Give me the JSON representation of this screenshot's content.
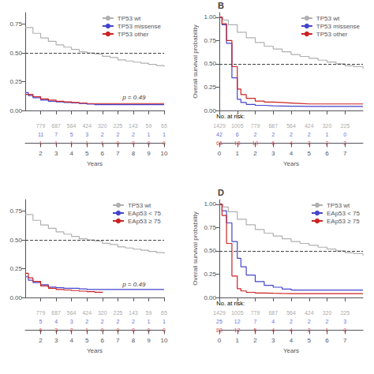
{
  "chart_data": [
    {
      "type": "step",
      "xlabel": "Years",
      "annotation": "p = 0.49",
      "legend": "upper right",
      "grid": false,
      "xlim": [
        1,
        10
      ],
      "xticks": [
        2,
        3,
        4,
        5,
        6,
        7,
        8,
        9,
        10
      ],
      "ylim": [
        0,
        0.85
      ],
      "yticks": [
        {
          "value": 0,
          "label": "0.00"
        },
        0.25,
        {
          "value": 0.5,
          "label": "0.50"
        },
        0.75
      ],
      "hline": {
        "value": 0.5,
        "color": "#444444",
        "line_style": "dashed"
      },
      "series": [
        {
          "name": "TP53 wt",
          "color": "#b0b0b0",
          "x": [
            1,
            1.5,
            2,
            2.5,
            3,
            3.5,
            4,
            4.5,
            5,
            5.5,
            6,
            6.5,
            7,
            7.5,
            8,
            8.5,
            9,
            9.5,
            10
          ],
          "values": [
            0.72,
            0.67,
            0.63,
            0.6,
            0.57,
            0.55,
            0.53,
            0.51,
            0.5,
            0.49,
            0.47,
            0.46,
            0.44,
            0.43,
            0.42,
            0.41,
            0.4,
            0.39,
            0.38
          ]
        },
        {
          "name": "TP53 missense",
          "color": "#4444cc",
          "x": [
            1,
            1.2,
            1.5,
            2,
            2.5,
            3,
            3.5,
            4,
            4.5,
            5,
            5.5,
            6,
            6.5,
            7,
            7.5,
            8,
            8.5,
            9,
            9.5,
            10
          ],
          "values": [
            0.155,
            0.13,
            0.11,
            0.09,
            0.08,
            0.075,
            0.07,
            0.065,
            0.06,
            0.055,
            0.05,
            0.05,
            0.05,
            0.05,
            0.05,
            0.05,
            0.05,
            0.05,
            0.05,
            0.05
          ]
        },
        {
          "name": "TP53 other",
          "color": "#cc2222",
          "x": [
            1,
            1.5,
            2,
            2.5,
            3,
            3.5,
            4,
            4.5,
            5,
            5.5,
            6,
            6.5,
            7,
            7.5,
            8,
            8.5,
            9,
            9.5,
            10
          ],
          "values": [
            0.14,
            0.12,
            0.1,
            0.09,
            0.08,
            0.075,
            0.07,
            0.065,
            0.06,
            0.06,
            0.06,
            0.06,
            0.06,
            0.06,
            0.06,
            0.06,
            0.06,
            0.06,
            0.06
          ]
        }
      ],
      "risk_table": {
        "x": [
          2,
          3,
          4,
          5,
          6,
          7,
          8,
          9,
          10
        ],
        "rows": [
          {
            "color": "#909090",
            "values": [
              779,
              687,
              564,
              424,
              320,
              225,
              143,
              59,
              65
            ]
          },
          {
            "color": "#4444cc",
            "values": [
              11,
              7,
              5,
              3,
              2,
              2,
              2,
              1,
              1
            ]
          },
          {
            "color": "#cc2222",
            "values": [
              1,
              1,
              1,
              1,
              1,
              0,
              0,
              0,
              0
            ]
          }
        ]
      }
    },
    {
      "type": "step",
      "label": "B",
      "xlabel": "Years",
      "ylabel": "Overall survival probability",
      "legend": "upper right",
      "grid": false,
      "xlim": [
        0,
        8
      ],
      "xticks": [
        0,
        1,
        2,
        3,
        4,
        5,
        6,
        7
      ],
      "ylim": [
        0,
        1.05
      ],
      "yticks": [
        {
          "value": 0,
          "label": "0.00"
        },
        0.25,
        {
          "value": 0.5,
          "label": "0.50"
        },
        0.75,
        {
          "value": 1,
          "label": "1.00"
        }
      ],
      "hline": {
        "value": 0.5,
        "color": "#444444",
        "line_style": "dashed"
      },
      "series": [
        {
          "name": "TP53 wt",
          "color": "#b0b0b0",
          "x": [
            0,
            0.2,
            0.5,
            1,
            1.5,
            2,
            2.5,
            3,
            3.5,
            4,
            4.5,
            5,
            5.5,
            6,
            6.5,
            7,
            7.5,
            8
          ],
          "values": [
            1.0,
            0.97,
            0.92,
            0.84,
            0.78,
            0.73,
            0.69,
            0.66,
            0.63,
            0.6,
            0.58,
            0.56,
            0.54,
            0.52,
            0.5,
            0.48,
            0.47,
            0.45
          ]
        },
        {
          "name": "TP53 missense",
          "color": "#4444cc",
          "x": [
            0,
            0.15,
            0.4,
            0.7,
            1.0,
            1.2,
            1.5,
            2,
            2.5,
            3,
            3.5,
            4,
            4.5,
            5,
            5.5,
            6,
            6.5,
            7,
            7.5,
            8
          ],
          "values": [
            1.0,
            0.92,
            0.72,
            0.35,
            0.12,
            0.085,
            0.065,
            0.055,
            0.05,
            0.048,
            0.046,
            0.045,
            0.044,
            0.043,
            0.043,
            0.043,
            0.043,
            0.043,
            0.043,
            0.043
          ]
        },
        {
          "name": "TP53 other",
          "color": "#cc2222",
          "x": [
            0,
            0.15,
            0.4,
            0.7,
            1.0,
            1.2,
            1.5,
            2,
            2.5,
            3,
            3.5,
            4,
            4.5,
            5,
            5.5,
            6,
            6.5,
            7,
            7.5,
            8
          ],
          "values": [
            1.0,
            0.93,
            0.75,
            0.47,
            0.23,
            0.17,
            0.13,
            0.1,
            0.09,
            0.085,
            0.08,
            0.075,
            0.07,
            0.07,
            0.07,
            0.07,
            0.07,
            0.07,
            0.07,
            0.07
          ]
        }
      ],
      "risk_table": {
        "title": "No. at risk:",
        "x": [
          0,
          1,
          2,
          3,
          4,
          5,
          6,
          7
        ],
        "rows": [
          {
            "color": "#909090",
            "values": [
              1429,
              1005,
              779,
              687,
              564,
              424,
              320,
              225
            ]
          },
          {
            "color": "#4444cc",
            "values": [
              42,
              6,
              2,
              2,
              2,
              2,
              1,
              0
            ]
          },
          {
            "color": "#cc2222",
            "values": [
              66,
              18,
              10,
              6,
              4,
              2,
              2,
              2
            ]
          }
        ]
      }
    },
    {
      "type": "step",
      "xlabel": "Years",
      "annotation": "p = 0.49",
      "legend": "upper right",
      "grid": false,
      "xlim": [
        1,
        10
      ],
      "xticks": [
        2,
        3,
        4,
        5,
        6,
        7,
        8,
        9,
        10
      ],
      "ylim": [
        0,
        0.85
      ],
      "yticks": [
        {
          "value": 0,
          "label": "0.00"
        },
        0.25,
        {
          "value": 0.5,
          "label": "0.50"
        },
        0.75
      ],
      "hline": {
        "value": 0.5,
        "color": "#444444",
        "line_style": "dashed"
      },
      "series": [
        {
          "name": "TP53 wt",
          "color": "#b0b0b0",
          "x": [
            1,
            1.5,
            2,
            2.5,
            3,
            3.5,
            4,
            4.5,
            5,
            5.5,
            6,
            6.5,
            7,
            7.5,
            8,
            8.5,
            9,
            9.5,
            10
          ],
          "values": [
            0.72,
            0.67,
            0.63,
            0.6,
            0.57,
            0.55,
            0.53,
            0.51,
            0.5,
            0.49,
            0.47,
            0.46,
            0.44,
            0.43,
            0.42,
            0.41,
            0.4,
            0.39,
            0.38
          ]
        },
        {
          "name": "EAp53 < 75",
          "color": "#4444cc",
          "x": [
            1,
            1.2,
            1.5,
            2,
            2.5,
            3,
            3.5,
            4,
            4.5,
            5,
            5.5,
            6,
            6.5,
            7,
            7.5,
            8,
            8.5,
            9,
            9.5,
            10
          ],
          "values": [
            0.18,
            0.15,
            0.13,
            0.11,
            0.09,
            0.085,
            0.08,
            0.08,
            0.075,
            0.07,
            0.07,
            0.07,
            0.07,
            0.07,
            0.07,
            0.07,
            0.07,
            0.07,
            0.07,
            0.07
          ]
        },
        {
          "name": "EAp53 ≥ 75",
          "color": "#cc2222",
          "x": [
            1,
            1.2,
            1.5,
            2,
            2.5,
            3,
            3.5,
            4,
            4.5,
            5,
            5.5,
            6
          ],
          "values": [
            0.21,
            0.17,
            0.14,
            0.1,
            0.08,
            0.07,
            0.065,
            0.06,
            0.055,
            0.05,
            0.045,
            0.04
          ]
        }
      ],
      "risk_table": {
        "x": [
          2,
          3,
          4,
          5,
          6,
          7,
          8,
          9,
          10
        ],
        "rows": [
          {
            "color": "#909090",
            "values": [
              779,
              687,
              564,
              424,
              320,
              225,
              143,
              59,
              65
            ]
          },
          {
            "color": "#4444cc",
            "values": [
              5,
              4,
              3,
              2,
              2,
              2,
              2,
              1,
              1
            ]
          },
          {
            "color": "#cc2222",
            "values": [
              6,
              3,
              2,
              1,
              0,
              0,
              0,
              0,
              0
            ]
          }
        ]
      }
    },
    {
      "type": "step",
      "label": "D",
      "xlabel": "Years",
      "ylabel": "Overall survival probability",
      "legend": "upper right",
      "grid": false,
      "xlim": [
        0,
        8
      ],
      "xticks": [
        0,
        1,
        2,
        3,
        4,
        5,
        6,
        7
      ],
      "ylim": [
        0,
        1.05
      ],
      "yticks": [
        {
          "value": 0,
          "label": "0.00"
        },
        0.25,
        {
          "value": 0.5,
          "label": "0.50"
        },
        0.75,
        {
          "value": 1,
          "label": "1.00"
        }
      ],
      "hline": {
        "value": 0.5,
        "color": "#444444",
        "line_style": "dashed"
      },
      "series": [
        {
          "name": "TP53 wt",
          "color": "#b0b0b0",
          "x": [
            0,
            0.2,
            0.5,
            1,
            1.5,
            2,
            2.5,
            3,
            3.5,
            4,
            4.5,
            5,
            5.5,
            6,
            6.5,
            7,
            7.5,
            8
          ],
          "values": [
            1.0,
            0.97,
            0.92,
            0.84,
            0.78,
            0.73,
            0.69,
            0.66,
            0.63,
            0.6,
            0.58,
            0.56,
            0.54,
            0.52,
            0.5,
            0.48,
            0.47,
            0.45
          ]
        },
        {
          "name": "EAp53 < 75",
          "color": "#4444cc",
          "x": [
            0,
            0.15,
            0.4,
            0.7,
            1.0,
            1.2,
            1.5,
            2,
            2.5,
            3,
            3.5,
            4,
            4.5,
            5,
            5.5,
            6,
            6.5,
            7,
            7.5,
            8
          ],
          "values": [
            1.0,
            0.93,
            0.8,
            0.6,
            0.42,
            0.33,
            0.24,
            0.17,
            0.13,
            0.11,
            0.09,
            0.08,
            0.08,
            0.08,
            0.08,
            0.08,
            0.08,
            0.08,
            0.08,
            0.08
          ]
        },
        {
          "name": "EAp53 ≥ 75",
          "color": "#cc2222",
          "x": [
            0,
            0.15,
            0.4,
            0.7,
            1.0,
            1.2,
            1.5,
            2,
            2.5,
            3,
            3.5,
            4,
            4.5,
            5,
            5.5,
            6,
            6.5,
            7,
            7.5,
            8
          ],
          "values": [
            1.0,
            0.88,
            0.58,
            0.23,
            0.095,
            0.07,
            0.055,
            0.048,
            0.045,
            0.043,
            0.042,
            0.042,
            0.042,
            0.042,
            0.042,
            0.042,
            0.042,
            0.042,
            0.042,
            0.042
          ]
        }
      ],
      "risk_table": {
        "title": "No. at risk:",
        "x": [
          0,
          1,
          2,
          3,
          4,
          5,
          6,
          7
        ],
        "rows": [
          {
            "color": "#909090",
            "values": [
              1429,
              1005,
              779,
              687,
              564,
              424,
              320,
              225
            ]
          },
          {
            "color": "#4444cc",
            "values": [
              25,
              12,
              7,
              4,
              2,
              2,
              2,
              3
            ]
          },
          {
            "color": "#cc2222",
            "values": [
              83,
              12,
              5,
              4,
              4,
              2,
              1,
              0
            ]
          }
        ]
      }
    }
  ]
}
